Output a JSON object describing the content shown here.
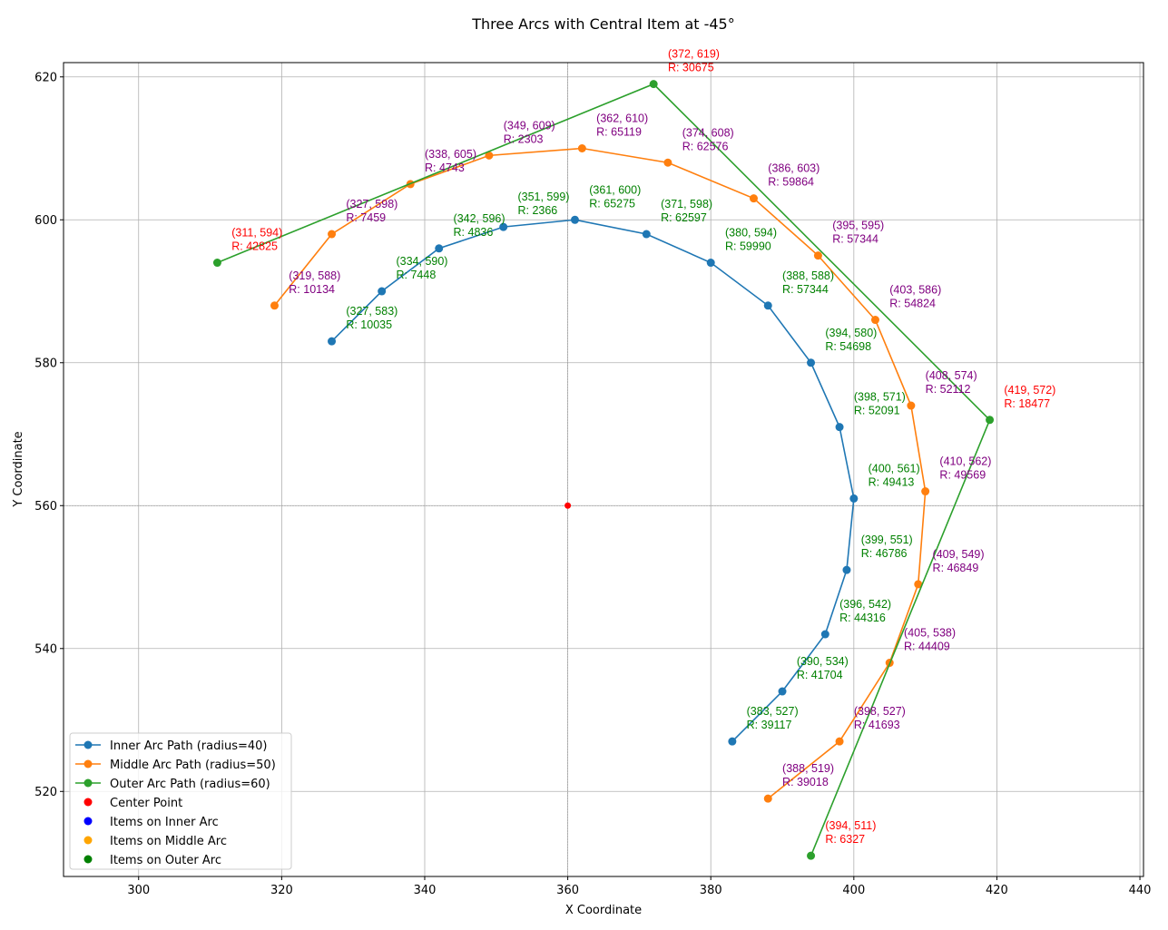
{
  "chart_data": {
    "type": "line",
    "title": "Three Arcs with Central Item at -45°",
    "xlabel": "X Coordinate",
    "ylabel": "Y Coordinate",
    "xlim": [
      289.5,
      440.5
    ],
    "ylim": [
      508.1,
      622.0
    ],
    "xticks": [
      300,
      320,
      340,
      360,
      380,
      400,
      420,
      440
    ],
    "yticks": [
      520,
      540,
      560,
      580,
      600,
      620
    ],
    "grid": true,
    "legend_position": "lower-left",
    "center": {
      "name": "Center Point",
      "x": 360,
      "y": 560,
      "color": "#ff0000"
    },
    "series": [
      {
        "name": "Inner Arc Path (radius=40)",
        "color": "#1f77b4",
        "label_color": "#008000",
        "points": [
          [
            327,
            583,
            10035
          ],
          [
            334,
            590,
            7448
          ],
          [
            342,
            596,
            4836
          ],
          [
            351,
            599,
            2366
          ],
          [
            361,
            600,
            65275
          ],
          [
            371,
            598,
            62597
          ],
          [
            380,
            594,
            59990
          ],
          [
            388,
            588,
            57344
          ],
          [
            394,
            580,
            54698
          ],
          [
            398,
            571,
            52091
          ],
          [
            400,
            561,
            49413
          ],
          [
            399,
            551,
            46786
          ],
          [
            396,
            542,
            44316
          ],
          [
            390,
            534,
            41704
          ],
          [
            383,
            527,
            39117
          ]
        ]
      },
      {
        "name": "Middle Arc Path (radius=50)",
        "color": "#ff7f0e",
        "label_color": "#800080",
        "points": [
          [
            319,
            588,
            10134
          ],
          [
            327,
            598,
            7459
          ],
          [
            338,
            605,
            4743
          ],
          [
            349,
            609,
            2303
          ],
          [
            362,
            610,
            65119
          ],
          [
            374,
            608,
            62576
          ],
          [
            386,
            603,
            59864
          ],
          [
            395,
            595,
            57344
          ],
          [
            403,
            586,
            54824
          ],
          [
            408,
            574,
            52112
          ],
          [
            410,
            562,
            49569
          ],
          [
            409,
            549,
            46849
          ],
          [
            405,
            538,
            44409
          ],
          [
            398,
            527,
            41693
          ],
          [
            388,
            519,
            39018
          ]
        ]
      },
      {
        "name": "Outer Arc Path (radius=60)",
        "color": "#2ca02c",
        "label_color": "#ff0000",
        "points": [
          [
            311,
            594,
            42825
          ],
          [
            372,
            619,
            30675
          ],
          [
            419,
            572,
            18477
          ],
          [
            394,
            511,
            6327
          ]
        ]
      }
    ],
    "scatter_legend": [
      {
        "name": "Center Point",
        "color": "#ff0000"
      },
      {
        "name": "Items on Inner Arc",
        "color": "#0000ff"
      },
      {
        "name": "Items on Middle Arc",
        "color": "#ffa500"
      },
      {
        "name": "Items on Outer Arc",
        "color": "#008000"
      }
    ]
  }
}
